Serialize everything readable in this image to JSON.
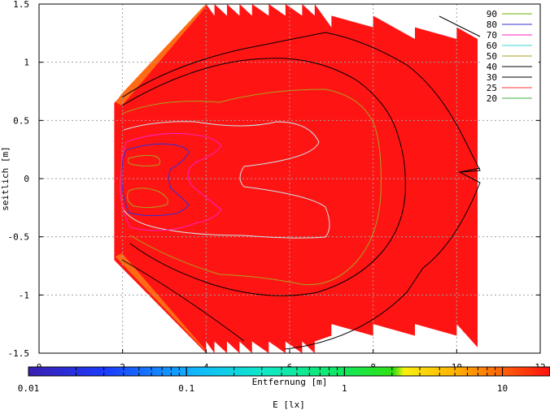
{
  "chart_data": {
    "type": "contour",
    "xlabel": "Entfernung [m]",
    "ylabel": "seitlich [m]",
    "xlim": [
      0,
      12
    ],
    "ylim": [
      -1.5,
      1.5
    ],
    "x_ticks": [
      "0",
      "2",
      "4",
      "6",
      "8",
      "10",
      "12"
    ],
    "y_ticks": [
      "1.5",
      "1",
      "0.5",
      "0",
      "-0.5",
      "-1",
      "-1.5"
    ],
    "grid": true,
    "fill_color": "#ff1414",
    "legend_position": "top-right",
    "contours": [
      {
        "level": "90",
        "color": "#6ab000"
      },
      {
        "level": "80",
        "color": "#3030d0"
      },
      {
        "level": "70",
        "color": "#ff20c0"
      },
      {
        "level": "60",
        "color": "#40d0d0"
      },
      {
        "level": "50",
        "color": "#a8a020"
      },
      {
        "level": "40",
        "color": "#000000"
      },
      {
        "level": "30",
        "color": "#000000"
      },
      {
        "level": "25",
        "color": "#ff3030"
      },
      {
        "level": "20",
        "color": "#40b040"
      }
    ],
    "colorbar": {
      "label": "E [lx]",
      "scale": "log",
      "ticks": [
        "0.01",
        "0.1",
        "1",
        "10"
      ],
      "range": [
        0.01,
        20
      ]
    }
  }
}
